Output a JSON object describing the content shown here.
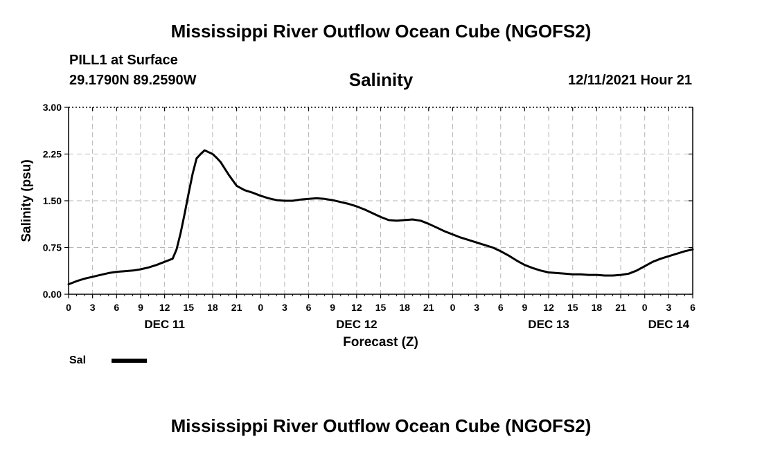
{
  "header": {
    "title": "Mississippi River Outflow Ocean Cube (NGOFS2)",
    "station": "PILL1 at Surface",
    "coords": "29.1790N  89.2590W",
    "panel_title": "Salinity",
    "run_time": "12/11/2021 Hour 21"
  },
  "footer": {
    "title": "Mississippi River Outflow Ocean Cube (NGOFS2)"
  },
  "chart_data": {
    "type": "line",
    "title": "Salinity",
    "xlabel": "Forecast (Z)",
    "ylabel": "Salinity (psu)",
    "ylim": [
      0,
      3
    ],
    "xlim_hours": [
      0,
      78
    ],
    "grid": true,
    "y_ticks": [
      "0.00",
      "0.75",
      "1.50",
      "2.25",
      "3.00"
    ],
    "y_tick_values": [
      0,
      0.75,
      1.5,
      2.25,
      3.0
    ],
    "x_tick_labels": [
      "0",
      "3",
      "6",
      "9",
      "12",
      "15",
      "18",
      "21",
      "0",
      "3",
      "6",
      "9",
      "12",
      "15",
      "18",
      "21",
      "0",
      "3",
      "6",
      "9",
      "12",
      "15",
      "18",
      "21",
      "0",
      "3",
      "6"
    ],
    "day_labels": [
      {
        "label": "DEC 11",
        "hour": 12
      },
      {
        "label": "DEC 12",
        "hour": 36
      },
      {
        "label": "DEC 13",
        "hour": 60
      },
      {
        "label": "DEC 14",
        "hour": 75
      }
    ],
    "legend": {
      "label": "Sal",
      "placement": "bottom-left",
      "color": "#000000"
    },
    "series": [
      {
        "name": "Sal",
        "x": [
          0,
          1,
          2,
          3,
          4,
          5,
          6,
          7,
          8,
          9,
          10,
          11,
          12,
          13,
          13.5,
          14,
          14.5,
          15,
          15.5,
          16,
          16.5,
          17,
          17.5,
          18,
          18.5,
          19,
          20,
          21,
          22,
          23,
          24,
          25,
          26,
          27,
          28,
          29,
          30,
          31,
          32,
          33,
          34,
          35,
          36,
          37,
          38,
          39,
          40,
          41,
          42,
          43,
          44,
          45,
          46,
          47,
          48,
          49,
          50,
          51,
          52,
          53,
          54,
          55,
          56,
          57,
          58,
          59,
          60,
          61,
          62,
          63,
          64,
          65,
          66,
          67,
          68,
          69,
          70,
          71,
          72,
          73,
          74,
          75,
          76,
          77,
          78
        ],
        "values": [
          0.16,
          0.21,
          0.25,
          0.28,
          0.31,
          0.34,
          0.36,
          0.37,
          0.38,
          0.4,
          0.43,
          0.47,
          0.52,
          0.57,
          0.72,
          0.98,
          1.29,
          1.62,
          1.93,
          2.18,
          2.25,
          2.31,
          2.28,
          2.25,
          2.19,
          2.12,
          1.92,
          1.74,
          1.67,
          1.63,
          1.58,
          1.54,
          1.51,
          1.5,
          1.5,
          1.52,
          1.53,
          1.54,
          1.53,
          1.51,
          1.48,
          1.45,
          1.41,
          1.36,
          1.3,
          1.24,
          1.19,
          1.18,
          1.19,
          1.2,
          1.18,
          1.13,
          1.07,
          1.01,
          0.96,
          0.91,
          0.87,
          0.83,
          0.79,
          0.75,
          0.69,
          0.62,
          0.54,
          0.47,
          0.42,
          0.38,
          0.35,
          0.34,
          0.33,
          0.32,
          0.32,
          0.31,
          0.31,
          0.3,
          0.3,
          0.31,
          0.33,
          0.38,
          0.45,
          0.52,
          0.57,
          0.61,
          0.65,
          0.69,
          0.72
        ],
        "color": "#000000"
      }
    ]
  }
}
